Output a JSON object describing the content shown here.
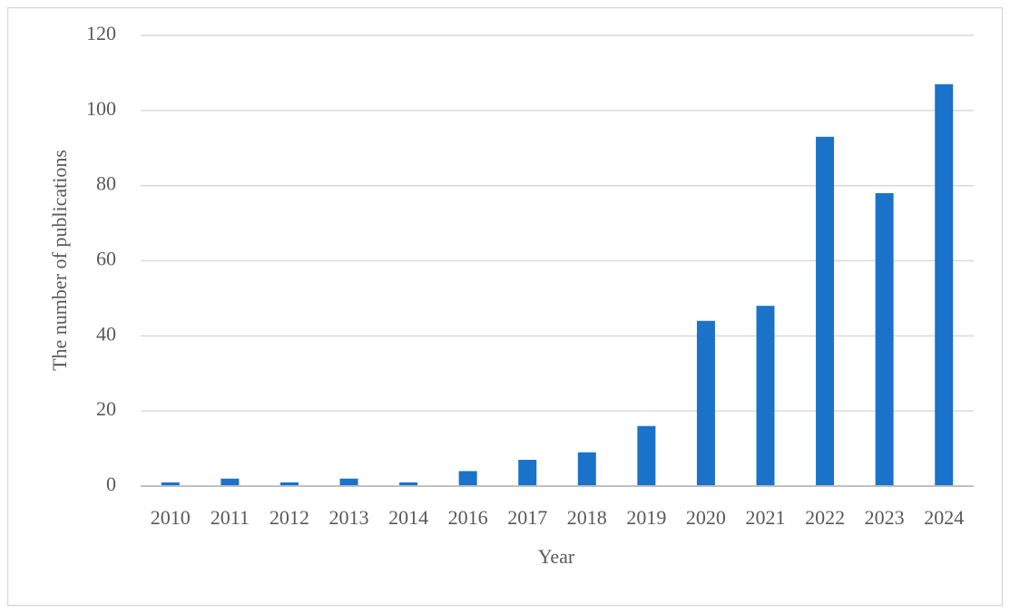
{
  "chart_data": {
    "type": "bar",
    "x_label": "Year",
    "y_label": "The number of publications",
    "categories": [
      "2010",
      "2011",
      "2012",
      "2013",
      "2014",
      "2016",
      "2017",
      "2018",
      "2019",
      "2020",
      "2021",
      "2022",
      "2023",
      "2024"
    ],
    "values": [
      1,
      2,
      1,
      2,
      1,
      4,
      7,
      9,
      16,
      44,
      48,
      93,
      78,
      107
    ],
    "color": "#1a73c9",
    "ylim": [
      0,
      120
    ],
    "yticks": [
      0,
      20,
      40,
      60,
      80,
      100,
      120
    ],
    "grid": true
  }
}
